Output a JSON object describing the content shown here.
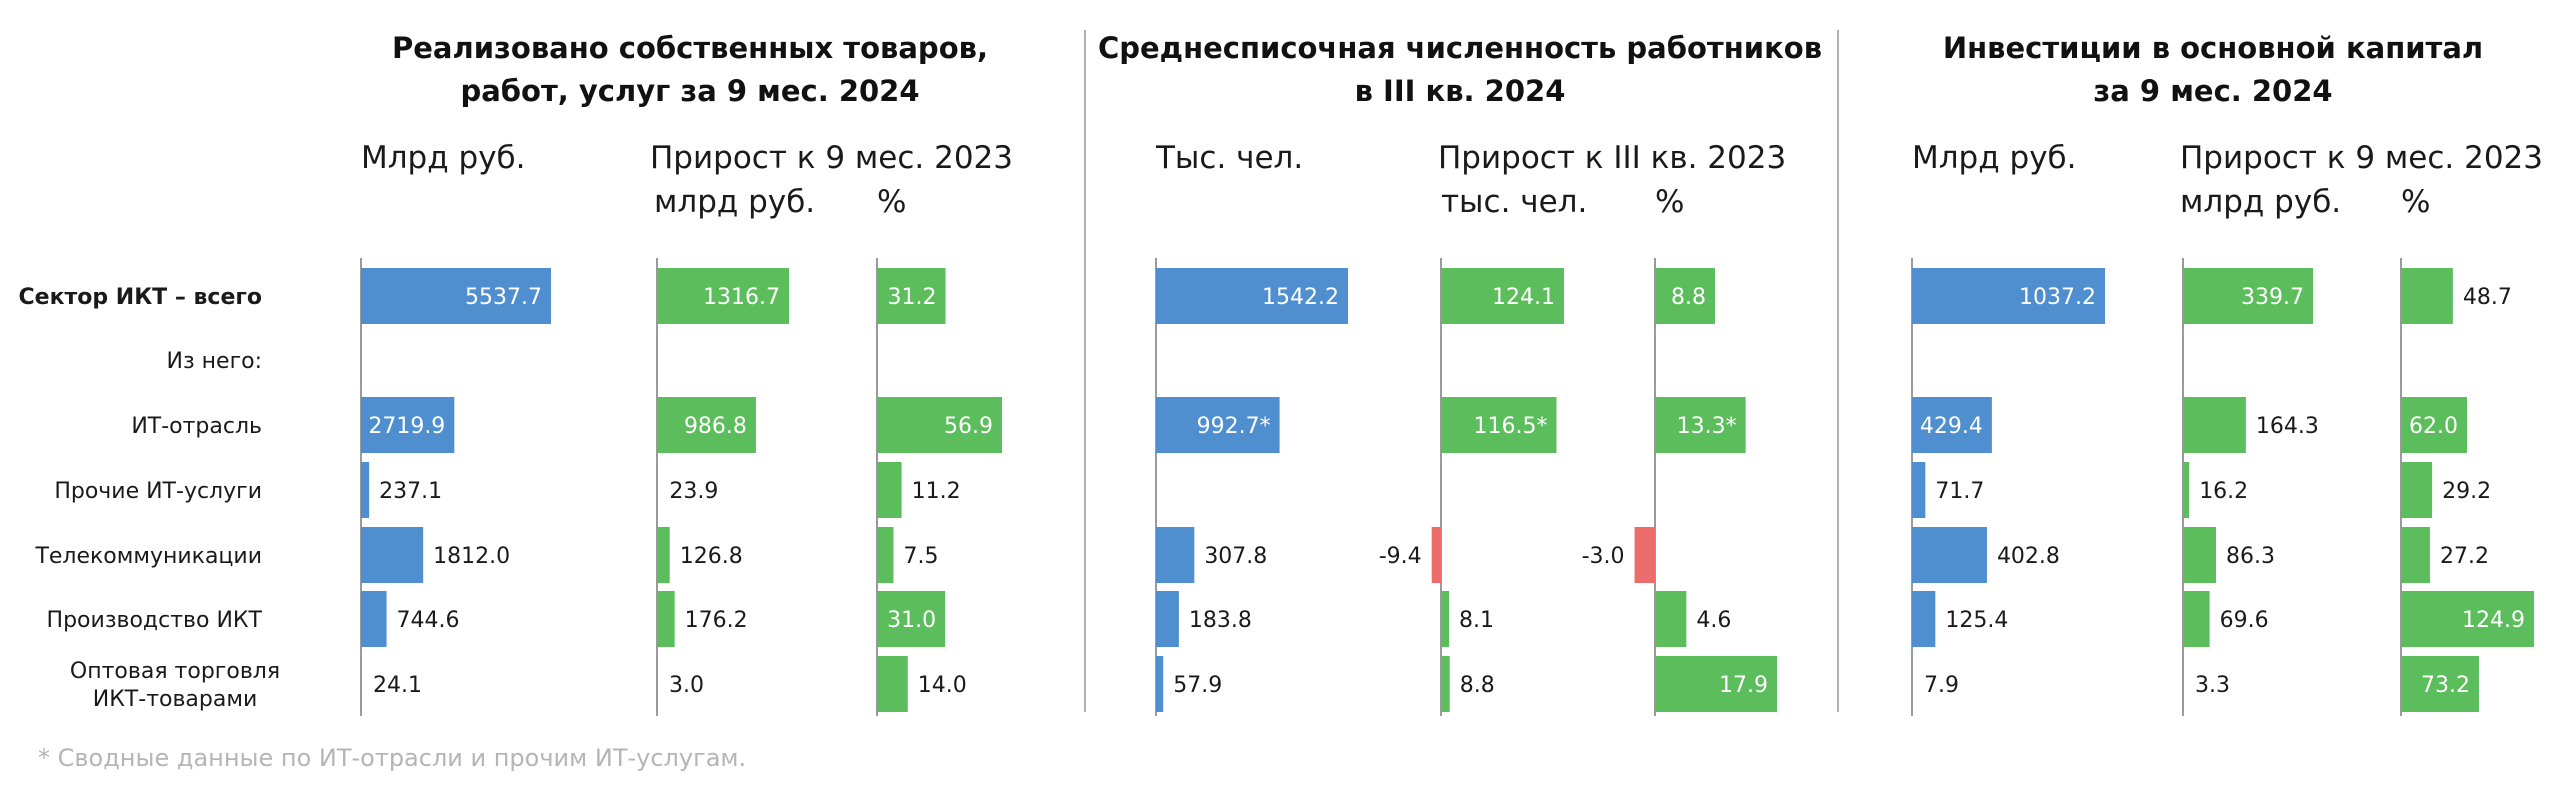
{
  "footnote": "* Сводные данные по ИТ-отрасли и прочим ИТ-услугам.",
  "rows": [
    {
      "label": "Сектор ИКТ – всего",
      "bold": true
    },
    {
      "label": "Из него:",
      "bold": false
    },
    {
      "label": "ИТ-отрасль",
      "bold": false
    },
    {
      "label": "Прочие ИТ-услуги",
      "bold": false
    },
    {
      "label": "Телекоммуникации",
      "bold": false
    },
    {
      "label": "Производство ИКТ",
      "bold": false
    },
    {
      "label": "Оптовая торговля",
      "label2": "ИКТ-товарами",
      "bold": false
    }
  ],
  "colors": {
    "level": "#4f8fd0",
    "increase": "#5cbd5c",
    "decrease": "#ec6c6c",
    "axis": "#9a9a9a"
  },
  "chart_data": [
    {
      "type": "bar",
      "title": [
        "Реализовано собственных товаров,",
        "работ, услуг за 9 мес. 2024"
      ],
      "columns": [
        {
          "unit": [
            "Млрд руб."
          ],
          "kind": "level",
          "values": [
            5537.7,
            null,
            2719.9,
            237.1,
            1812.0,
            744.6,
            24.1
          ],
          "labels": [
            "5537.7",
            "",
            "2719.9",
            "237.1",
            "1812.0",
            "744.6",
            "24.1"
          ]
        },
        {
          "unit": [
            "Прирост к 9 мес. 2023",
            "млрд руб."
          ],
          "kind": "increase",
          "values": [
            1316.7,
            null,
            986.8,
            23.9,
            126.8,
            176.2,
            3.0
          ],
          "labels": [
            "1316.7",
            "",
            "986.8",
            "23.9",
            "126.8",
            "176.2",
            "3.0"
          ]
        },
        {
          "unit": [
            "",
            "%"
          ],
          "kind": "increase",
          "values": [
            31.2,
            null,
            56.9,
            11.2,
            7.5,
            31.0,
            14.0
          ],
          "labels": [
            "31.2",
            "",
            "56.9",
            "11.2",
            "7.5",
            "31.0",
            "14.0"
          ]
        }
      ]
    },
    {
      "type": "bar",
      "title": [
        "Среднесписочная численность работников",
        "в III кв. 2024"
      ],
      "columns": [
        {
          "unit": [
            "Тыс. чел."
          ],
          "kind": "level",
          "values": [
            1542.2,
            null,
            992.7,
            null,
            307.8,
            183.8,
            57.9
          ],
          "labels": [
            "1542.2",
            "",
            "992.7*",
            "",
            "307.8",
            "183.8",
            "57.9"
          ]
        },
        {
          "unit": [
            "Прирост к III кв. 2023",
            "тыс. чел."
          ],
          "kind": "increase",
          "values": [
            124.1,
            null,
            116.5,
            null,
            -9.4,
            8.1,
            8.8
          ],
          "labels": [
            "124.1",
            "",
            "116.5*",
            "",
            "-9.4",
            "8.1",
            "8.8"
          ]
        },
        {
          "unit": [
            "",
            "%"
          ],
          "kind": "increase",
          "values": [
            8.8,
            null,
            13.3,
            null,
            -3.0,
            4.6,
            17.9
          ],
          "labels": [
            "8.8",
            "",
            "13.3*",
            "",
            "-3.0",
            "4.6",
            "17.9"
          ]
        }
      ]
    },
    {
      "type": "bar",
      "title": [
        "Инвестиции в основной капитал",
        "за 9 мес. 2024"
      ],
      "columns": [
        {
          "unit": [
            "Млрд руб."
          ],
          "kind": "level",
          "values": [
            1037.2,
            null,
            429.4,
            71.7,
            402.8,
            125.4,
            7.9
          ],
          "labels": [
            "1037.2",
            "",
            "429.4",
            "71.7",
            "402.8",
            "125.4",
            "7.9"
          ]
        },
        {
          "unit": [
            "Прирост к 9 мес. 2023",
            "млрд руб."
          ],
          "kind": "increase",
          "values": [
            339.7,
            null,
            164.3,
            16.2,
            86.3,
            69.6,
            3.3
          ],
          "labels": [
            "339.7",
            "",
            "164.3",
            "16.2",
            "86.3",
            "69.6",
            "3.3"
          ]
        },
        {
          "unit": [
            "",
            "%"
          ],
          "kind": "increase",
          "values": [
            48.7,
            null,
            62.0,
            29.2,
            27.2,
            124.9,
            73.2
          ],
          "labels": [
            "48.7",
            "",
            "62.0",
            "29.2",
            "27.2",
            "124.9",
            "73.2"
          ]
        }
      ]
    }
  ]
}
